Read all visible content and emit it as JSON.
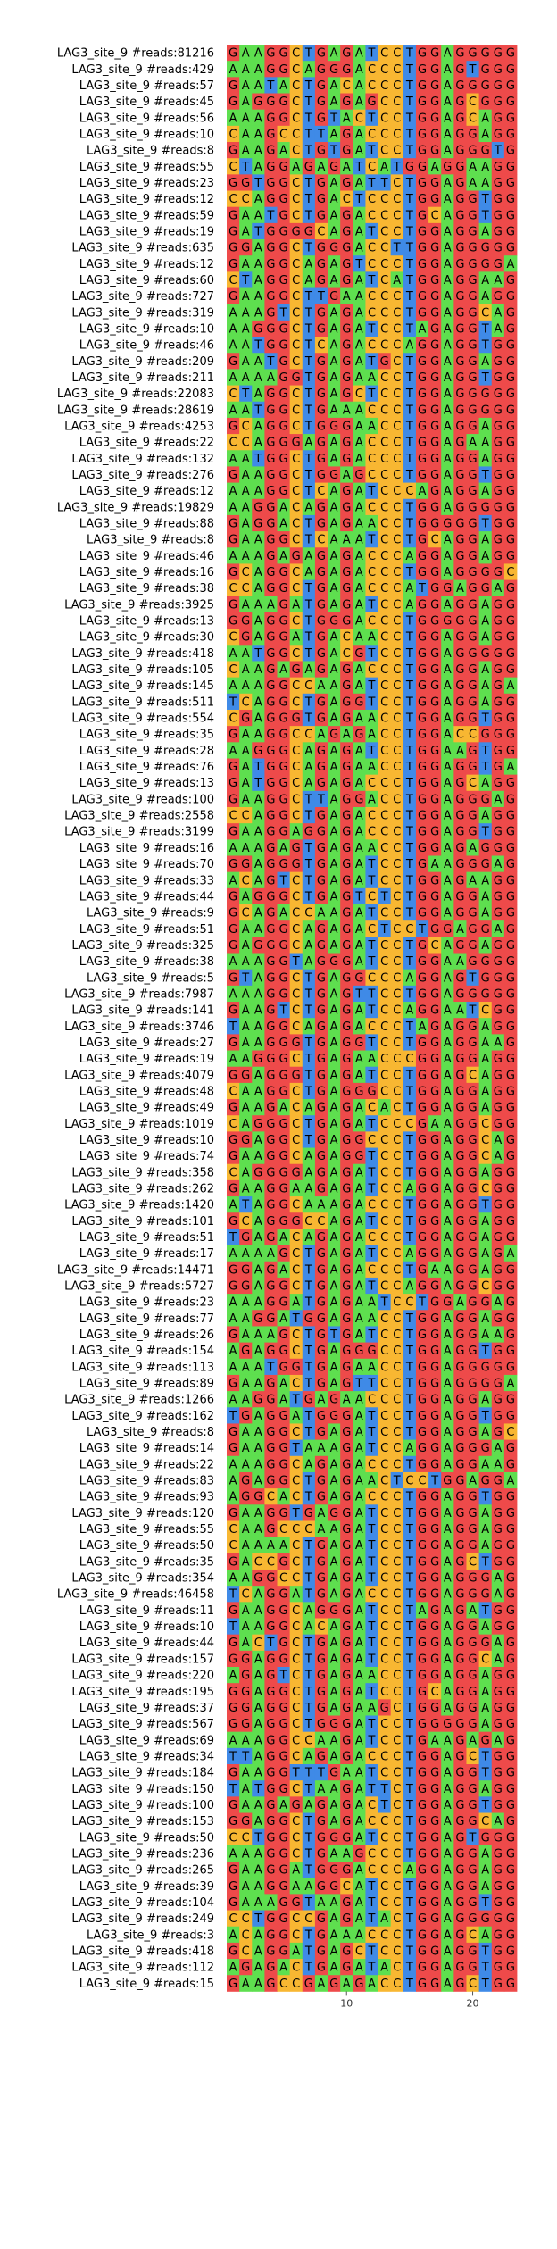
{
  "colors": {
    "A": "#5edf4f",
    "C": "#f8b732",
    "G": "#ee4a4a",
    "T": "#3f8ae7"
  },
  "axis": {
    "ticks": [
      10,
      20
    ]
  },
  "rows": [
    {
      "label": "LAG3_site_9 #reads:81216",
      "seq": "GAAGGCTGAGATCCTGGAGGGGG"
    },
    {
      "label": "LAG3_site_9 #reads:429",
      "seq": "AAAGGCAGGGACCCTGGAGTGGG"
    },
    {
      "label": "LAG3_site_9 #reads:57",
      "seq": "GAATACTGACACCCTGGAGGGGG"
    },
    {
      "label": "LAG3_site_9 #reads:45",
      "seq": "GAGGGCTGAGAGCCTGGAGCGGG"
    },
    {
      "label": "LAG3_site_9 #reads:56",
      "seq": "AAAGGCTGTACTCCTGGAGCAGG"
    },
    {
      "label": "LAG3_site_9 #reads:10",
      "seq": "CAAGCCTTAGACCCTGGAGGAGG"
    },
    {
      "label": "LAG3_site_9 #reads:8",
      "seq": "GAAGACTGTGATCCTGGAGGGTG"
    },
    {
      "label": "LAG3_site_9 #reads:55",
      "seq": "CTAGGAGAGATCATGGAGGAAGG"
    },
    {
      "label": "LAG3_site_9 #reads:23",
      "seq": "GGTGGCTGAGATTCTGGAGAAGG"
    },
    {
      "label": "LAG3_site_9 #reads:12",
      "seq": "CCAGGCTGACTCCCTGGAGGTGG"
    },
    {
      "label": "LAG3_site_9 #reads:59",
      "seq": "GAATGCTGAGACCCTGCAGGTGG"
    },
    {
      "label": "LAG3_site_9 #reads:19",
      "seq": "GATGGGGCAGATCCTGGAGGAGG"
    },
    {
      "label": "LAG3_site_9 #reads:635",
      "seq": "GGAGGCTGGGACCTTGGAGGGGG"
    },
    {
      "label": "LAG3_site_9 #reads:12",
      "seq": "GAAGGCAGAGTCCCTGGAGGGGA"
    },
    {
      "label": "LAG3_site_9 #reads:60",
      "seq": "CTAGGCAGAGATCATGGAGGAAG"
    },
    {
      "label": "LAG3_site_9 #reads:727",
      "seq": "GAAGGCTTGAACCCTGGAGGAGG"
    },
    {
      "label": "LAG3_site_9 #reads:319",
      "seq": "AAAGTCTGAGACCCTGGAGGCAG"
    },
    {
      "label": "LAG3_site_9 #reads:10",
      "seq": "AAGGGCTGAGATCCTAGAGGTAG"
    },
    {
      "label": "LAG3_site_9 #reads:46",
      "seq": "AATGGCTCAGACCCAGGAGGTGG"
    },
    {
      "label": "LAG3_site_9 #reads:209",
      "seq": "GAATGCTGAGATGCTGGAGGAGG"
    },
    {
      "label": "LAG3_site_9 #reads:211",
      "seq": "AAAAGGTGAGAACCTGGAGGTGG"
    },
    {
      "label": "LAG3_site_9 #reads:22083",
      "seq": "CTAGGCTGAGCTCCTGGAGGGGG"
    },
    {
      "label": "LAG3_site_9 #reads:28619",
      "seq": "AATGGCTGAAACCCTGGAGGGGG"
    },
    {
      "label": "LAG3_site_9 #reads:4253",
      "seq": "GCAGGCTGGGAACCTGGAGGAGG"
    },
    {
      "label": "LAG3_site_9 #reads:22",
      "seq": "CCAGGGAGAGACCCTGGAGAAGG"
    },
    {
      "label": "LAG3_site_9 #reads:132",
      "seq": "AATGGCTGAGACCCTGGAGGAGG"
    },
    {
      "label": "LAG3_site_9 #reads:276",
      "seq": "GAAGGCTGGAGCCCTGGAGGTGG"
    },
    {
      "label": "LAG3_site_9 #reads:12",
      "seq": "AAAGGCTCAGATCCCAGAGGAGG"
    },
    {
      "label": "LAG3_site_9 #reads:19829",
      "seq": "AAGGACAGAGACCCTGGAGGGGG"
    },
    {
      "label": "LAG3_site_9 #reads:88",
      "seq": "GAGGACTGAGAACCTGGGGGTGG"
    },
    {
      "label": "LAG3_site_9 #reads:8",
      "seq": "GAAGGCTCAAATCCTGCAGGAGG"
    },
    {
      "label": "LAG3_site_9 #reads:46",
      "seq": "AAAGAGAGAGACCCAGGAGGAGG"
    },
    {
      "label": "LAG3_site_9 #reads:16",
      "seq": "GCAGGCAGAGACCCTGGAGGGGC"
    },
    {
      "label": "LAG3_site_9 #reads:38",
      "seq": "CCAGGCTGAGACCCATGGAGGAG"
    },
    {
      "label": "LAG3_site_9 #reads:3925",
      "seq": "GAAAGATGAGATCCAGGAGGAGG"
    },
    {
      "label": "LAG3_site_9 #reads:13",
      "seq": "GGAGGCTGGGACCCTGGGGGAGG"
    },
    {
      "label": "LAG3_site_9 #reads:30",
      "seq": "CGAGGATGACAACCTGGAGGAGG"
    },
    {
      "label": "LAG3_site_9 #reads:418",
      "seq": "AATGGCTGACGTCCTGGAGGGGG"
    },
    {
      "label": "LAG3_site_9 #reads:105",
      "seq": "CAAGAGAGAGACCCTGGAGGAGG"
    },
    {
      "label": "LAG3_site_9 #reads:145",
      "seq": "AAAGGCCAAGATCCTGGAGGAGA"
    },
    {
      "label": "LAG3_site_9 #reads:511",
      "seq": "TCAGGCTGAGGTCCTGGAGGAGG"
    },
    {
      "label": "LAG3_site_9 #reads:554",
      "seq": "CGAGGGTGAGAACCTGGAGGTGG"
    },
    {
      "label": "LAG3_site_9 #reads:35",
      "seq": "GAAGGCCAGAGACCTGGACCGGG"
    },
    {
      "label": "LAG3_site_9 #reads:28",
      "seq": "AAGGGCAGAGATCCTGGAAGTGG"
    },
    {
      "label": "LAG3_site_9 #reads:76",
      "seq": "GATGGCAGAGAACCTGGAGGTGA"
    },
    {
      "label": "LAG3_site_9 #reads:13",
      "seq": "GATGGCAGAGACCCTGGAGCAGG"
    },
    {
      "label": "LAG3_site_9 #reads:100",
      "seq": "GAAGGCTTAGGACCTGGAGGGAG"
    },
    {
      "label": "LAG3_site_9 #reads:2558",
      "seq": "CCAGGCTGAGACCCTGGAGGAGG"
    },
    {
      "label": "LAG3_site_9 #reads:3199",
      "seq": "GAAGGAGGAGACCCTGGAGGTGG"
    },
    {
      "label": "LAG3_site_9 #reads:16",
      "seq": "AAAGAGTGAGAACCTGGAGAGGG"
    },
    {
      "label": "LAG3_site_9 #reads:70",
      "seq": "GGAGGGTGAGATCCTGAAGGGAG"
    },
    {
      "label": "LAG3_site_9 #reads:33",
      "seq": "ACAGTCTGAGATCCTGGAGAAGG"
    },
    {
      "label": "LAG3_site_9 #reads:44",
      "seq": "GAGGGCTGAGTCTCTGGAGGAGG"
    },
    {
      "label": "LAG3_site_9 #reads:9",
      "seq": "GCAGACCAAGATCCTGGAGGAGG"
    },
    {
      "label": "LAG3_site_9 #reads:51",
      "seq": "GAAGGCAGAGACTCCTGGAGGAG"
    },
    {
      "label": "LAG3_site_9 #reads:325",
      "seq": "GAGGGCAGAGATCCTGCAGGAGG"
    },
    {
      "label": "LAG3_site_9 #reads:38",
      "seq": "AAAGGTAGGGATCCTGGAAGGGG"
    },
    {
      "label": "LAG3_site_9 #reads:5",
      "seq": "GTAGGCTGAGGCCCAGGAGTGGG"
    },
    {
      "label": "LAG3_site_9 #reads:7987",
      "seq": "AAAGGCTGAGTTCCTGGAGGGGG"
    },
    {
      "label": "LAG3_site_9 #reads:141",
      "seq": "GAAGTCTGAGATCCAGGAATCGG"
    },
    {
      "label": "LAG3_site_9 #reads:3746",
      "seq": "TAAGGCAGAGACCCTAGAGGAGG"
    },
    {
      "label": "LAG3_site_9 #reads:27",
      "seq": "GAAGGGTGAGGTCCTGGAGGAAG"
    },
    {
      "label": "LAG3_site_9 #reads:19",
      "seq": "AAGGGCTGAGAACCCGGAGGAGG"
    },
    {
      "label": "LAG3_site_9 #reads:4079",
      "seq": "GGAGGGTGAGATCCTGGAGCAGG"
    },
    {
      "label": "LAG3_site_9 #reads:48",
      "seq": "CAAGGCTGAGGGCCTGGAGGAGG"
    },
    {
      "label": "LAG3_site_9 #reads:49",
      "seq": "GAAGACAGAGACACTGGAGGAGG"
    },
    {
      "label": "LAG3_site_9 #reads:1019",
      "seq": "CAGGGCTGAGATCCCGAAGGCGG"
    },
    {
      "label": "LAG3_site_9 #reads:10",
      "seq": "GGAGGCTGAGGCCCTGGAGGCAG"
    },
    {
      "label": "LAG3_site_9 #reads:74",
      "seq": "GAAGGCAGAGGTCCTGGAGGCAG"
    },
    {
      "label": "LAG3_site_9 #reads:358",
      "seq": "CAGGGGAGAGATCCTGGAGGAGG"
    },
    {
      "label": "LAG3_site_9 #reads:262",
      "seq": "GAAGGAAGAGATCCAGGAGGCGG"
    },
    {
      "label": "LAG3_site_9 #reads:1420",
      "seq": "ATAGGCAAAGACCCTGGAGGTGG"
    },
    {
      "label": "LAG3_site_9 #reads:101",
      "seq": "GCAGGGCCAGATCCTGGAGGAGG"
    },
    {
      "label": "LAG3_site_9 #reads:51",
      "seq": "TGAGACAGAGACCCTGGAGGAGG"
    },
    {
      "label": "LAG3_site_9 #reads:17",
      "seq": "AAAAGCTGAGATCCAGGAGGAGA"
    },
    {
      "label": "LAG3_site_9 #reads:14471",
      "seq": "GGAGACTGAGACCCTGAAGGAGG"
    },
    {
      "label": "LAG3_site_9 #reads:5727",
      "seq": "GGAGGCTGAGATCCAGGAGGCGG"
    },
    {
      "label": "LAG3_site_9 #reads:23",
      "seq": "AAAGGATGAGAATCCTGGAGGAG"
    },
    {
      "label": "LAG3_site_9 #reads:77",
      "seq": "AAGGATGGAGAACCTGGAGGAGG"
    },
    {
      "label": "LAG3_site_9 #reads:26",
      "seq": "GAAAGCTGTGATCCTGGAGGAAG"
    },
    {
      "label": "LAG3_site_9 #reads:154",
      "seq": "AGAGGCTGAGGGCCTGGAGGTGG"
    },
    {
      "label": "LAG3_site_9 #reads:113",
      "seq": "AAATGGTGAGAACCTGGAGGGGG"
    },
    {
      "label": "LAG3_site_9 #reads:89",
      "seq": "GAAGACTGAGTTCCTGGAGGGGA"
    },
    {
      "label": "LAG3_site_9 #reads:1266",
      "seq": "AAGGATGAGAACCCTGGAGGAGG"
    },
    {
      "label": "LAG3_site_9 #reads:162",
      "seq": "TGAGGATGGGATCCTGGAGGTGG"
    },
    {
      "label": "LAG3_site_9 #reads:8",
      "seq": "GAAGGCTGAGATCCTGGAGGAGC"
    },
    {
      "label": "LAG3_site_9 #reads:14",
      "seq": "GAAGGTAAAGATCCAGGAGGGAG"
    },
    {
      "label": "LAG3_site_9 #reads:22",
      "seq": "AAAGGCAGAGACCCTGGAGGAAG"
    },
    {
      "label": "LAG3_site_9 #reads:83",
      "seq": "AGAGGCTGAGAACTCCTGGAGGA"
    },
    {
      "label": "LAG3_site_9 #reads:93",
      "seq": "AGGCACTGAGACCCTGGAGGTGG"
    },
    {
      "label": "LAG3_site_9 #reads:120",
      "seq": "GAAGGTGAGGATCCTGGAGGAGG"
    },
    {
      "label": "LAG3_site_9 #reads:55",
      "seq": "CAAGCCCAAGATCCTGGAGGAGG"
    },
    {
      "label": "LAG3_site_9 #reads:50",
      "seq": "CAAAACTGAGATCCTGGAGGAGG"
    },
    {
      "label": "LAG3_site_9 #reads:35",
      "seq": "GACCGCTGAGATCCTGGAGCTGG"
    },
    {
      "label": "LAG3_site_9 #reads:354",
      "seq": "AAGGCCTGAGATCCTGGAGGGAG"
    },
    {
      "label": "LAG3_site_9 #reads:46458",
      "seq": "TCAGGATGAGACCCTGGAGGGAG"
    },
    {
      "label": "LAG3_site_9 #reads:11",
      "seq": "GAAGGCAGGGATCCTAGAGATGG"
    },
    {
      "label": "LAG3_site_9 #reads:10",
      "seq": "TAAGGCACAGATCCTGGAGGAGG"
    },
    {
      "label": "LAG3_site_9 #reads:44",
      "seq": "GACTGCTGAGATCCTGGAGGGAG"
    },
    {
      "label": "LAG3_site_9 #reads:157",
      "seq": "GGAGGCTGAGATCCTGGAGGCAG"
    },
    {
      "label": "LAG3_site_9 #reads:220",
      "seq": "AGAGTCTGAGAACCTGGAGGAGG"
    },
    {
      "label": "LAG3_site_9 #reads:195",
      "seq": "GGAGGCTGAGATCCTGCAGGAGG"
    },
    {
      "label": "LAG3_site_9 #reads:37",
      "seq": "GGAGGCTGAGAAGCTGGAGGAGG"
    },
    {
      "label": "LAG3_site_9 #reads:567",
      "seq": "GGAGGCTGGGATCCTGGGGGAGG"
    },
    {
      "label": "LAG3_site_9 #reads:69",
      "seq": "AAAGGCCAAGATCCTGAAGAGAG"
    },
    {
      "label": "LAG3_site_9 #reads:34",
      "seq": "TTAGGCAGAGACCCTGGAGCTGG"
    },
    {
      "label": "LAG3_site_9 #reads:184",
      "seq": "GAAGGTTTGAATCCTGGAGGTGG"
    },
    {
      "label": "LAG3_site_9 #reads:150",
      "seq": "TATGGCTAAGATTCTGGAGGAGG"
    },
    {
      "label": "LAG3_site_9 #reads:100",
      "seq": "GAAGAGAGAGACTCTGGAGGTGG"
    },
    {
      "label": "LAG3_site_9 #reads:153",
      "seq": "GGAGGCTGAGACCCTGGAGGCAG"
    },
    {
      "label": "LAG3_site_9 #reads:50",
      "seq": "CCTGGCTGGGATCCTGGAGTGGG"
    },
    {
      "label": "LAG3_site_9 #reads:236",
      "seq": "AAAGGCTGAAGCCCTGGAGGAGG"
    },
    {
      "label": "LAG3_site_9 #reads:265",
      "seq": "GAAGGATGGGACCCAGGAGGAGG"
    },
    {
      "label": "LAG3_site_9 #reads:39",
      "seq": "GAAGGAAGGCATCCTGGAGGAGG"
    },
    {
      "label": "LAG3_site_9 #reads:104",
      "seq": "GAAAGGTAAGATCCTGGAGGTGG"
    },
    {
      "label": "LAG3_site_9 #reads:249",
      "seq": "CCTGGCCGAGATACTGGAGGGGG"
    },
    {
      "label": "LAG3_site_9 #reads:3",
      "seq": "ACAGGCTGAAACCCTGGAGCAGG"
    },
    {
      "label": "LAG3_site_9 #reads:418",
      "seq": "GCAGGATGAGCTCCTGGAGGTGG"
    },
    {
      "label": "LAG3_site_9 #reads:112",
      "seq": "AGAGACTGAGATACTGGAGGTGG"
    },
    {
      "label": "LAG3_site_9 #reads:15",
      "seq": "GAAGCCGAGAGACCTGGAGCTGG"
    }
  ]
}
